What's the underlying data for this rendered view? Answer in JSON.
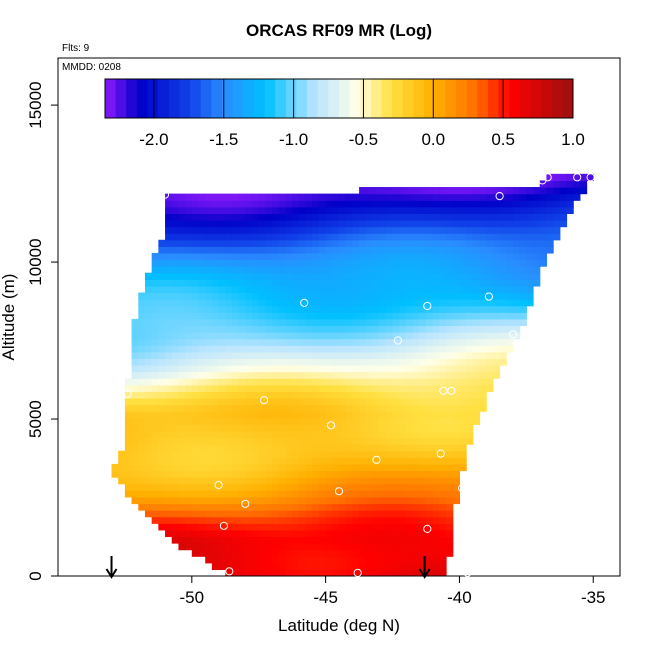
{
  "chart_data": {
    "type": "heatmap",
    "title": "ORCAS RF09 MR (Log)",
    "annotations": {
      "flights": "Flts: 9",
      "date": "MMDD: 0208"
    },
    "xlabel": "Latitude (deg N)",
    "ylabel": "Altitude (m)",
    "xlim": [
      -55,
      -34
    ],
    "ylim": [
      0,
      16500
    ],
    "x_ticks": [
      -50,
      -45,
      -40,
      -35
    ],
    "x_tick_labels": [
      "-50",
      "-45",
      "-40",
      "-35"
    ],
    "y_ticks": [
      0,
      5000,
      10000,
      15000
    ],
    "y_tick_labels": [
      "0",
      "5000",
      "10000",
      "15000"
    ],
    "colorbar": {
      "min": -2.35,
      "max": 1.0,
      "ticks": [
        -2.0,
        -1.5,
        -1.0,
        -0.5,
        0.0,
        0.5,
        1.0
      ],
      "tick_labels": [
        "-2.0",
        "-1.5",
        "-1.0",
        "-0.5",
        "0.0",
        "0.5",
        "1.0"
      ],
      "stops": [
        [
          -2.35,
          "#8e1aff"
        ],
        [
          -2.1,
          "#0000c8"
        ],
        [
          -1.75,
          "#1040e8"
        ],
        [
          -1.5,
          "#2a8cff"
        ],
        [
          -1.2,
          "#00c0ff"
        ],
        [
          -0.85,
          "#b8e4ff"
        ],
        [
          -0.55,
          "#ffffe8"
        ],
        [
          -0.3,
          "#ffe040"
        ],
        [
          0.0,
          "#ffb000"
        ],
        [
          0.3,
          "#ff7000"
        ],
        [
          0.55,
          "#ff0000"
        ],
        [
          1.0,
          "#9a1010"
        ]
      ]
    },
    "domain": {
      "top": [
        [
          -51.0,
          12100
        ],
        [
          -43.9,
          12100
        ],
        [
          -43.8,
          12450
        ],
        [
          -37.0,
          12450
        ],
        [
          -36.5,
          12800
        ],
        [
          -35.0,
          12800
        ]
      ],
      "left": [
        [
          12100,
          -51.0
        ],
        [
          11000,
          -51.0
        ],
        [
          10000,
          -51.5
        ],
        [
          9000,
          -51.9
        ],
        [
          8000,
          -52.2
        ],
        [
          6000,
          -52.4
        ],
        [
          4000,
          -52.6
        ],
        [
          3300,
          -53.0
        ],
        [
          2500,
          -52.3
        ],
        [
          1800,
          -51.5
        ],
        [
          1000,
          -50.5
        ],
        [
          500,
          -49.5
        ],
        [
          0,
          -48.5
        ]
      ],
      "right": [
        [
          12800,
          -35.0
        ],
        [
          12100,
          -35.5
        ],
        [
          11000,
          -36.2
        ],
        [
          10000,
          -36.8
        ],
        [
          9000,
          -37.2
        ],
        [
          8000,
          -37.6
        ],
        [
          7000,
          -38.2
        ],
        [
          6000,
          -38.8
        ],
        [
          5000,
          -39.3
        ],
        [
          4000,
          -39.7
        ],
        [
          3000,
          -40.0
        ],
        [
          2000,
          -40.2
        ],
        [
          1000,
          -40.3
        ],
        [
          0,
          -40.5
        ]
      ]
    },
    "profile": {
      "altitudes": [
        0,
        1200,
        2500,
        3800,
        5200,
        6500,
        8000,
        9500,
        11000,
        12800
      ],
      "values": [
        0.75,
        0.55,
        0.12,
        -0.02,
        -0.18,
        -0.6,
        -0.9,
        -1.35,
        -1.8,
        -2.3
      ]
    },
    "sample_points": [
      [
        -51.0,
        12150
      ],
      [
        -48.6,
        150
      ],
      [
        -48.8,
        1600
      ],
      [
        -49.0,
        2900
      ],
      [
        -48.0,
        2300
      ],
      [
        -47.3,
        5600
      ],
      [
        -45.8,
        8700
      ],
      [
        -44.8,
        4800
      ],
      [
        -44.5,
        2700
      ],
      [
        -43.8,
        100
      ],
      [
        -43.1,
        3700
      ],
      [
        -42.3,
        7500
      ],
      [
        -41.2,
        8600
      ],
      [
        -41.2,
        1500
      ],
      [
        -40.7,
        3900
      ],
      [
        -40.6,
        5900
      ],
      [
        -40.3,
        5900
      ],
      [
        -39.9,
        2800
      ],
      [
        -39.7,
        100
      ],
      [
        -39.0,
        4500
      ],
      [
        -38.9,
        8900
      ],
      [
        -38.5,
        12100
      ],
      [
        -38.0,
        7700
      ],
      [
        -36.9,
        12600
      ],
      [
        -36.7,
        12700
      ],
      [
        -35.6,
        12700
      ],
      [
        -35.1,
        12700
      ],
      [
        -52.4,
        5800
      ],
      [
        -52.3,
        8500
      ]
    ],
    "arrows_lat": [
      -53.0,
      -41.3
    ]
  }
}
